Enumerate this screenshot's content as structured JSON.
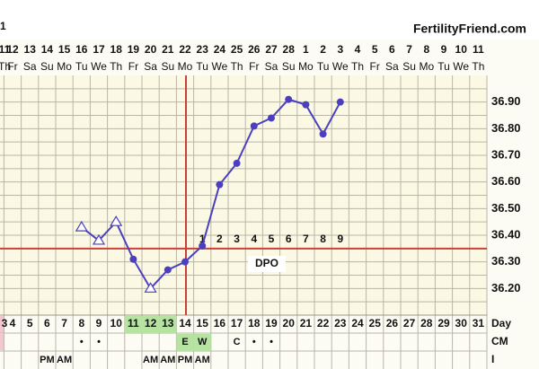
{
  "header_fragment": "1",
  "chart_data": {
    "type": "line",
    "title": "FertilityFriend.com",
    "categories": [
      "3",
      "4",
      "5",
      "6",
      "7",
      "8",
      "9",
      "10",
      "11",
      "12",
      "13",
      "14",
      "15",
      "16",
      "17",
      "18",
      "19",
      "20",
      "21",
      "22",
      "23",
      "24",
      "25",
      "26",
      "27",
      "28",
      "29",
      "30",
      "31"
    ],
    "dates": [
      "11",
      "12",
      "13",
      "14",
      "15",
      "16",
      "17",
      "18",
      "19",
      "20",
      "21",
      "22",
      "23",
      "24",
      "25",
      "26",
      "27",
      "28",
      "1",
      "2",
      "3",
      "4",
      "5",
      "6",
      "7",
      "8",
      "9",
      "10",
      "11"
    ],
    "weekdays": [
      "Th",
      "Fr",
      "Sa",
      "Su",
      "Mo",
      "Tu",
      "We",
      "Th",
      "Fr",
      "Sa",
      "Su",
      "Mo",
      "Tu",
      "We",
      "Th",
      "Fr",
      "Sa",
      "Su",
      "Mo",
      "Tu",
      "We",
      "Th",
      "Fr",
      "Sa",
      "Su",
      "Mo",
      "Tu",
      "We",
      "Th"
    ],
    "x_label": "Day",
    "series": [
      {
        "color": "#4b3fc0",
        "values": [
          null,
          null,
          null,
          null,
          null,
          36.43,
          36.38,
          36.45,
          36.31,
          36.2,
          36.27,
          36.3,
          36.36,
          36.59,
          36.67,
          36.81,
          36.84,
          36.91,
          36.89,
          36.78,
          36.9,
          null,
          null,
          null,
          null,
          null,
          null,
          null,
          null
        ],
        "markers": [
          null,
          null,
          null,
          null,
          null,
          "triangle",
          "triangle",
          "triangle",
          "dot",
          "triangle",
          "dot",
          "dot",
          "dot",
          "dot",
          "dot",
          "dot",
          "dot",
          "dot",
          "dot",
          "dot",
          "dot",
          null,
          null,
          null,
          null,
          null,
          null,
          null,
          null
        ]
      }
    ],
    "ylim": [
      36.1,
      37.0
    ],
    "yticks": [
      {
        "value": 36.2,
        "label": "36.20"
      },
      {
        "value": 36.3,
        "label": "36.30"
      },
      {
        "value": 36.4,
        "label": "36.40"
      },
      {
        "value": 36.5,
        "label": "36.50"
      },
      {
        "value": 36.6,
        "label": "36.60"
      },
      {
        "value": 36.7,
        "label": "36.70"
      },
      {
        "value": 36.8,
        "label": "36.80"
      },
      {
        "value": 36.9,
        "label": "36.90"
      }
    ],
    "y_gridlines": [
      36.15,
      36.2,
      36.25,
      36.3,
      36.35,
      36.4,
      36.45,
      36.5,
      36.55,
      36.6,
      36.65,
      36.7,
      36.75,
      36.8,
      36.85,
      36.9,
      36.95
    ],
    "coverline": 36.35,
    "ovulation_index": 11,
    "line_color": "#c8423c",
    "dpo_title": "DPO",
    "dpo_labels": [
      "1",
      "2",
      "3",
      "4",
      "5",
      "6",
      "7",
      "8",
      "9"
    ],
    "dpo_start_index": 12,
    "day_highlight": [
      8,
      9,
      10
    ],
    "highlight_color": "#b6e3a2",
    "rows": [
      {
        "label": "CM",
        "highlight": [
          11,
          12
        ],
        "cells": [
          null,
          null,
          null,
          null,
          null,
          "•",
          "•",
          null,
          null,
          null,
          null,
          "E",
          "W",
          null,
          "C",
          "•",
          "•",
          null,
          null,
          null,
          null,
          null,
          null,
          null,
          null,
          null,
          null,
          null,
          null
        ]
      },
      {
        "label": "I",
        "highlight": [],
        "cells": [
          null,
          null,
          null,
          "PM",
          "AM",
          null,
          null,
          null,
          null,
          "AM",
          "AM",
          "PM",
          "AM",
          null,
          null,
          null,
          null,
          null,
          null,
          null,
          null,
          null,
          null,
          null,
          null,
          null,
          null,
          null,
          null
        ]
      }
    ]
  }
}
